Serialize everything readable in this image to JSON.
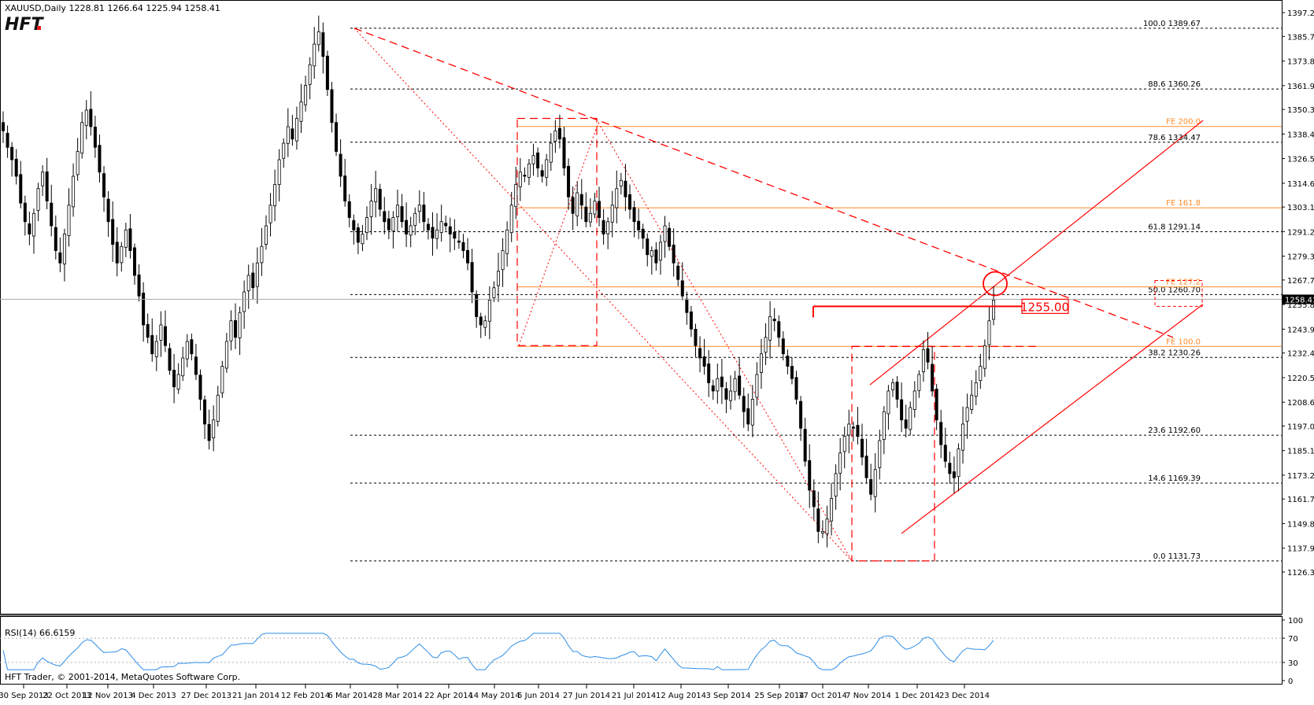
{
  "header": {
    "symbol_line": "XAUUSD,Daily  1228.81 1266.64 1225.94 1258.41",
    "logo": "HFT"
  },
  "footer": {
    "copyright": "HFT Trader, © 2001-2014, MetaQuotes Software Corp."
  },
  "colors": {
    "fib_line": "#000000",
    "fe_line": "#ff8c2a",
    "trend": "#ff0000",
    "rsi_line": "#2e8ee8"
  },
  "chart_data": [
    {
      "type": "candlestick",
      "symbol": "XAUUSD",
      "timeframe": "Daily",
      "last_bar": {
        "open": 1228.81,
        "high": 1266.64,
        "low": 1225.94,
        "close": 1258.41
      },
      "current_price": "1258.41",
      "ylim": [
        1126.35,
        1397.25
      ],
      "y_ticks": [
        "1397.25",
        "1385.70",
        "1373.80",
        "1361.90",
        "1350.35",
        "1338.45",
        "1326.55",
        "1314.65",
        "1303.10",
        "1291.20",
        "1279.30",
        "1267.75",
        "1255.85",
        "1243.95",
        "1232.40",
        "1220.50",
        "1208.60",
        "1197.05",
        "1185.15",
        "1173.25",
        "1161.70",
        "1149.80",
        "1137.90",
        "1126.35"
      ],
      "x_ticks": [
        "30 Sep 2013",
        "22 Oct 2013",
        "12 Nov 2013",
        "4 Dec 2013",
        "27 Dec 2013",
        "21 Jan 2014",
        "12 Feb 2014",
        "6 Mar 2014",
        "28 Mar 2014",
        "22 Apr 2014",
        "14 May 2014",
        "5 Jun 2014",
        "27 Jun 2014",
        "21 Jul 2014",
        "12 Aug 2014",
        "3 Sep 2014",
        "25 Sep 2014",
        "17 Oct 2014",
        "7 Nov 2014",
        "1 Dec 2014",
        "23 Dec 2014"
      ],
      "fib_levels": [
        {
          "label": "100.0  1389.67",
          "value": 1389.67
        },
        {
          "label": "88.6  1360.26",
          "value": 1360.26
        },
        {
          "label": "78.6  1334.47",
          "value": 1334.47
        },
        {
          "label": "61.8  1291.14",
          "value": 1291.14
        },
        {
          "label": "50.0  1260.70",
          "value": 1260.7
        },
        {
          "label": "38.2  1230.26",
          "value": 1230.26
        },
        {
          "label": "23.6  1192.60",
          "value": 1192.6
        },
        {
          "label": "14.6  1169.39",
          "value": 1169.39
        },
        {
          "label": "0.0  1131.73",
          "value": 1131.73
        }
      ],
      "fe_levels": [
        {
          "label": "FE 200.0",
          "value": 1342.1
        },
        {
          "label": "FE 161.8",
          "value": 1302.7
        },
        {
          "label": "FE 127.2",
          "value": 1264.4
        },
        {
          "label": "FE 100.0",
          "value": 1235.6
        }
      ],
      "annotation": {
        "label": "1255.00",
        "value": 1255.0
      },
      "series_close": [
        1340,
        1332,
        1326,
        1318,
        1305,
        1296,
        1290,
        1300,
        1312,
        1320,
        1306,
        1294,
        1282,
        1276,
        1290,
        1304,
        1318,
        1330,
        1344,
        1350,
        1342,
        1332,
        1320,
        1308,
        1296,
        1285,
        1276,
        1284,
        1292,
        1282,
        1270,
        1260,
        1246,
        1240,
        1232,
        1238,
        1246,
        1236,
        1224,
        1216,
        1222,
        1230,
        1238,
        1232,
        1222,
        1210,
        1198,
        1190,
        1200,
        1212,
        1226,
        1238,
        1248,
        1240,
        1252,
        1262,
        1270,
        1264,
        1276,
        1284,
        1294,
        1304,
        1314,
        1326,
        1334,
        1342,
        1336,
        1346,
        1354,
        1362,
        1372,
        1382,
        1388,
        1376,
        1360,
        1344,
        1330,
        1318,
        1306,
        1298,
        1292,
        1286,
        1290,
        1298,
        1306,
        1312,
        1302,
        1296,
        1292,
        1298,
        1304,
        1296,
        1290,
        1294,
        1300,
        1304,
        1296,
        1292,
        1288,
        1292,
        1296,
        1294,
        1290,
        1288,
        1286,
        1282,
        1276,
        1262,
        1250,
        1246,
        1248,
        1258,
        1264,
        1272,
        1282,
        1292,
        1304,
        1314,
        1320,
        1318,
        1324,
        1328,
        1322,
        1318,
        1326,
        1334,
        1340,
        1336,
        1322,
        1308,
        1300,
        1310,
        1304,
        1296,
        1300,
        1306,
        1298,
        1290,
        1296,
        1304,
        1312,
        1316,
        1308,
        1302,
        1296,
        1292,
        1288,
        1280,
        1282,
        1276,
        1286,
        1294,
        1284,
        1276,
        1268,
        1260,
        1252,
        1244,
        1236,
        1230,
        1226,
        1218,
        1214,
        1220,
        1216,
        1210,
        1214,
        1220,
        1212,
        1204,
        1198,
        1210,
        1222,
        1232,
        1240,
        1250,
        1248,
        1240,
        1232,
        1226,
        1220,
        1210,
        1196,
        1180,
        1166,
        1158,
        1146,
        1146,
        1152,
        1162,
        1174,
        1184,
        1192,
        1198,
        1196,
        1192,
        1182,
        1172,
        1164,
        1176,
        1190,
        1204,
        1214,
        1218,
        1210,
        1200,
        1196,
        1206,
        1214,
        1222,
        1234,
        1228,
        1214,
        1200,
        1188,
        1180,
        1174,
        1172,
        1186,
        1198,
        1206,
        1212,
        1218,
        1226,
        1236,
        1248,
        1258
      ]
    },
    {
      "type": "line",
      "name": "RSI(14)",
      "label": "RSI(14) 66.6159",
      "current_value": 66.6159,
      "ylim": [
        0,
        100
      ],
      "y_ticks": [
        "100",
        "70",
        "30",
        "0"
      ],
      "levels": [
        70,
        30
      ]
    }
  ]
}
